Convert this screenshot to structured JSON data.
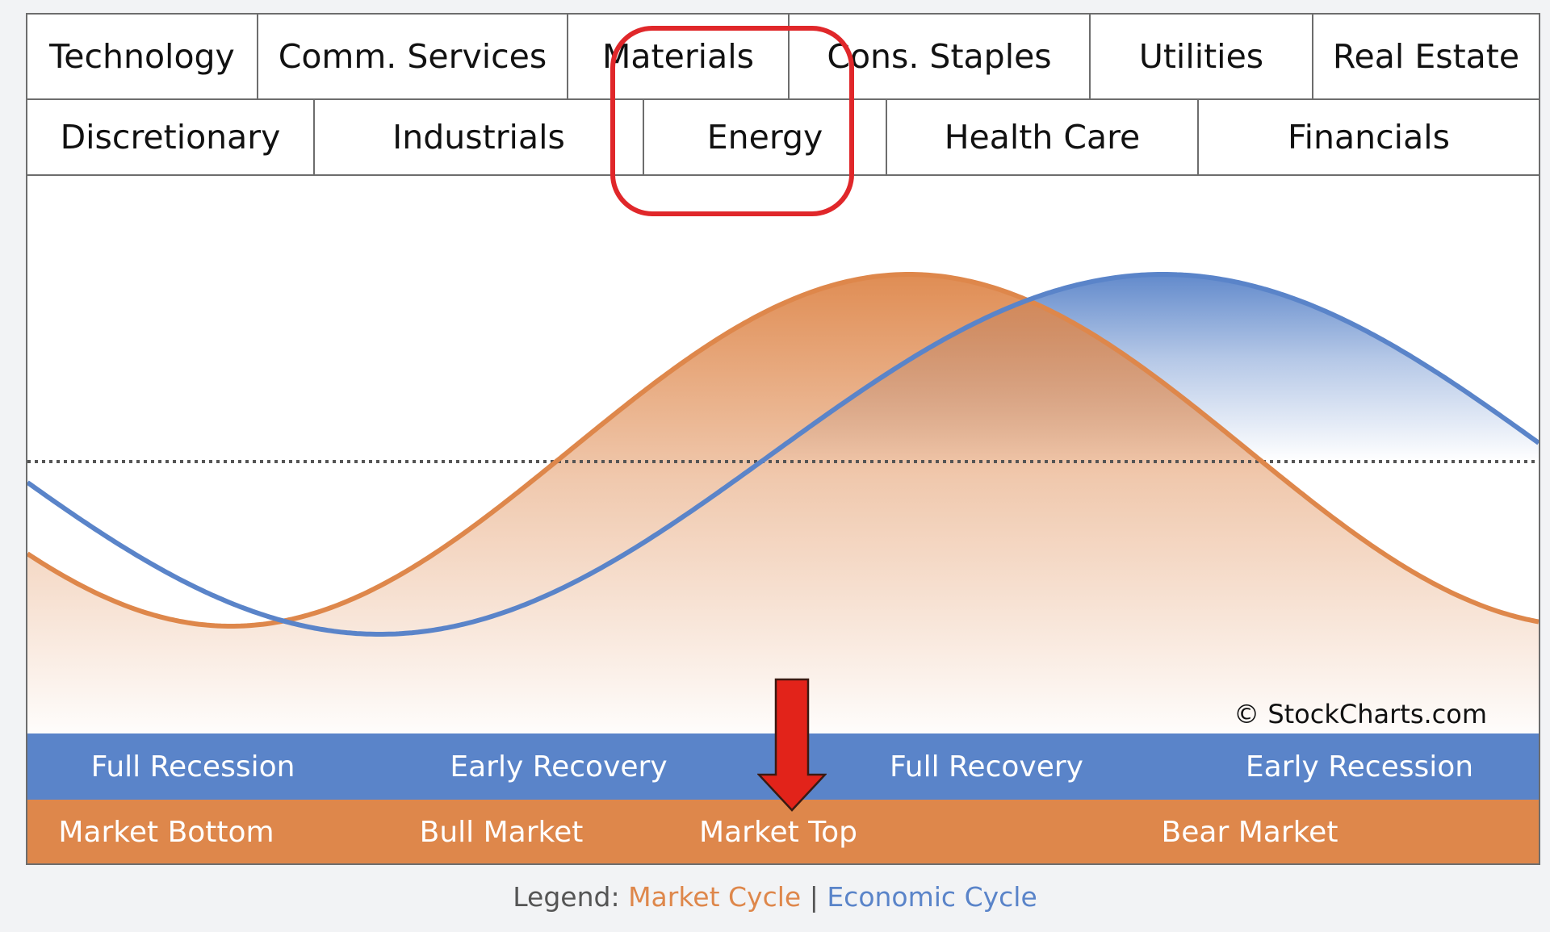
{
  "sectors_top_row": [
    "Technology",
    "Comm. Services",
    "Materials",
    "Cons. Staples",
    "Utilities",
    "Real Estate"
  ],
  "sectors_bottom_row": [
    "Discretionary",
    "Industrials",
    "Energy",
    "Health Care",
    "Financials"
  ],
  "highlighted_sectors": [
    "Materials",
    "Energy"
  ],
  "economic_cycle_phases": [
    "Full Recession",
    "Early Recovery",
    "Full Recovery",
    "Early Recession"
  ],
  "market_cycle_phases": [
    "Market Bottom",
    "Bull Market",
    "Market Top",
    "Bear Market"
  ],
  "copyright": "© StockCharts.com",
  "legend": {
    "prefix": "Legend:",
    "market_cycle": "Market Cycle",
    "separator": "|",
    "economic_cycle": "Economic Cycle"
  },
  "colors": {
    "market_cycle": "#de874b",
    "economic_cycle": "#5a84c9",
    "highlight": "#e0272a",
    "arrow": "#e2231a"
  },
  "icons": {
    "arrow": "down-arrow-icon",
    "highlight": "highlight-circle"
  }
}
